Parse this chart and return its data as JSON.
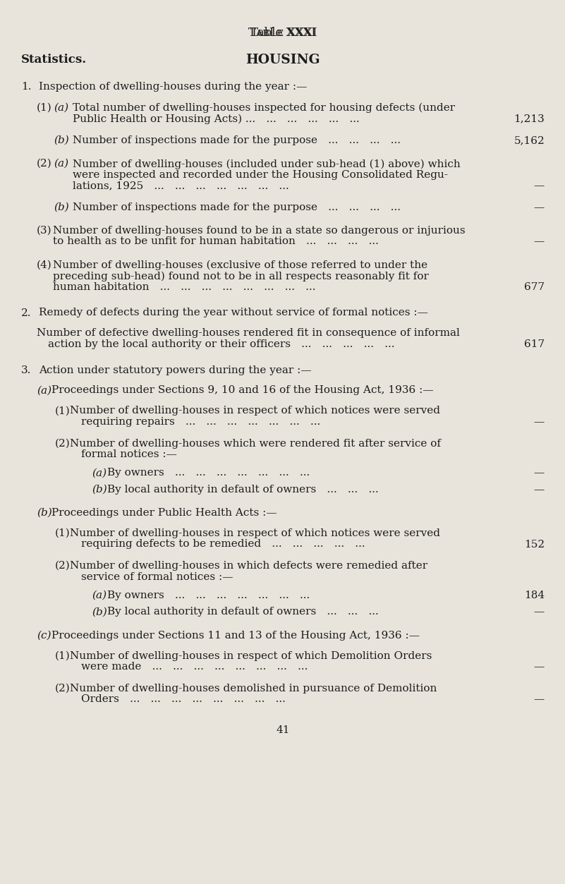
{
  "bg_color": "#e8e4db",
  "text_color": "#1c1c1c",
  "title": "Table XXXI",
  "header_left": "Statistics.",
  "header_center": "HOUSING",
  "page_number": "41",
  "fig_width": 8.01,
  "fig_height": 12.53,
  "dpi": 100
}
